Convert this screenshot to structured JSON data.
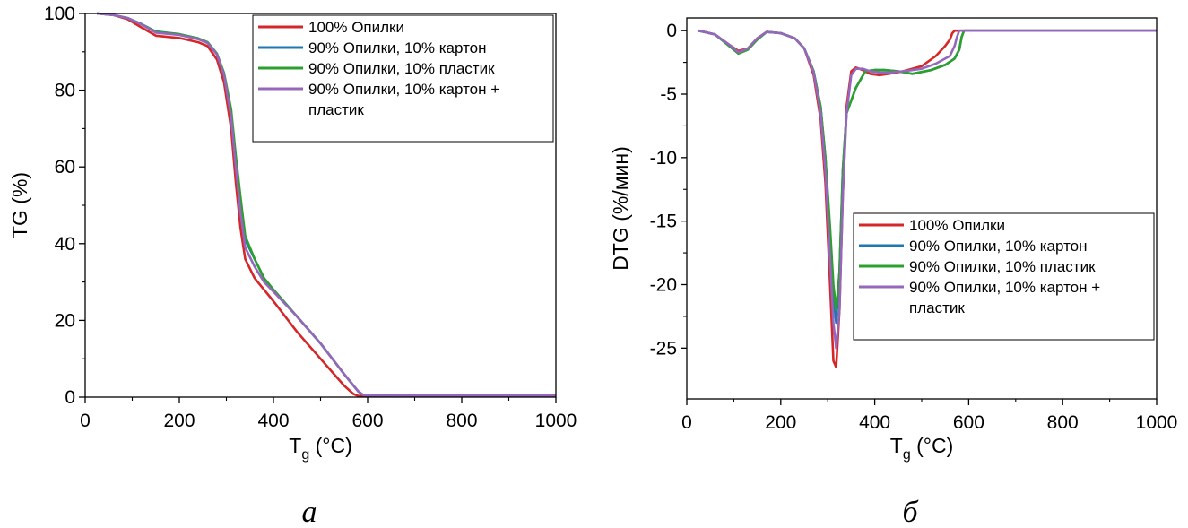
{
  "panels": [
    {
      "letter": "а",
      "chart_data": {
        "type": "line",
        "title": "",
        "xlabel_main": "T",
        "xlabel_sub": "g",
        "xlabel_unit": " (°C)",
        "ylabel": "TG (%)",
        "xlim": [
          0,
          1000
        ],
        "ylim": [
          0,
          100
        ],
        "xticks": [
          0,
          200,
          400,
          600,
          800,
          1000
        ],
        "yticks": [
          0,
          20,
          40,
          60,
          80,
          100
        ],
        "grid": false,
        "legend_position": "top-right",
        "series": [
          {
            "name": "100% Опилки",
            "color": "#d62728",
            "x": [
              25,
              60,
              90,
              120,
              150,
              200,
              240,
              260,
              280,
              295,
              310,
              320,
              330,
              340,
              360,
              400,
              450,
              500,
              550,
              570,
              580,
              600,
              700,
              800,
              1000
            ],
            "y": [
              100,
              99.6,
              98.5,
              96.3,
              94.2,
              93.6,
              92.5,
              91.5,
              88,
              82,
              70,
              56,
              44,
              36,
              31,
              25,
              17,
              10,
              3,
              0.8,
              0.3,
              0.3,
              0.3,
              0.3,
              0.3
            ]
          },
          {
            "name": "90% Опилки, 10% картон",
            "color": "#1f77b4",
            "x": [
              25,
              60,
              90,
              120,
              150,
              200,
              240,
              260,
              280,
              295,
              310,
              320,
              330,
              340,
              360,
              380,
              400,
              450,
              500,
              550,
              580,
              590,
              600,
              700,
              800,
              1000
            ],
            "y": [
              100,
              99.6,
              98.8,
              97.2,
              95.3,
              94.6,
              93.5,
              92.5,
              89.5,
              84,
              74,
              62,
              50,
              41,
              36,
              31,
              28,
              21,
              14,
              6,
              1.5,
              0.6,
              0.5,
              0.4,
              0.4,
              0.4
            ]
          },
          {
            "name": "90% Опилки, 10% пластик",
            "color": "#2ca02c",
            "x": [
              25,
              60,
              90,
              120,
              150,
              200,
              240,
              260,
              280,
              295,
              310,
              320,
              330,
              340,
              360,
              380,
              400,
              450,
              500,
              550,
              580,
              590,
              600,
              700,
              800,
              1000
            ],
            "y": [
              100,
              99.6,
              98.8,
              97.2,
              95.2,
              94.6,
              93.5,
              92.5,
              89.5,
              84.5,
              75,
              63,
              52,
              42,
              36,
              31,
              28,
              21,
              14,
              6,
              1.5,
              0.6,
              0.5,
              0.4,
              0.4,
              0.4
            ]
          },
          {
            "name": "90% Опилки, 10% картон + пластик",
            "color": "#9467bd",
            "x": [
              25,
              60,
              90,
              120,
              150,
              200,
              240,
              260,
              280,
              295,
              310,
              320,
              330,
              340,
              360,
              380,
              400,
              450,
              500,
              550,
              580,
              590,
              600,
              700,
              800,
              1000
            ],
            "y": [
              100,
              99.6,
              98.8,
              97.1,
              95,
              94.4,
              93.3,
              92.3,
              89.3,
              84,
              73,
              60,
              48,
              39,
              34,
              30,
              27.5,
              21,
              14,
              6,
              1.5,
              0.6,
              0.5,
              0.4,
              0.4,
              0.4
            ]
          }
        ]
      }
    },
    {
      "letter": "б",
      "chart_data": {
        "type": "line",
        "title": "",
        "xlabel_main": "T",
        "xlabel_sub": "g",
        "xlabel_unit": " (°C)",
        "ylabel": "DTG (%/мин)",
        "xlim": [
          0,
          1000
        ],
        "ylim": [
          -29,
          1
        ],
        "xticks": [
          0,
          200,
          400,
          600,
          800,
          1000
        ],
        "yticks": [
          -25,
          -20,
          -15,
          -10,
          -5,
          0
        ],
        "grid": false,
        "legend_position": "center-right",
        "series": [
          {
            "name": "100% Опилки",
            "color": "#d62728",
            "x": [
              25,
              60,
              90,
              110,
              130,
              150,
              170,
              200,
              230,
              250,
              270,
              285,
              295,
              305,
              312,
              318,
              325,
              332,
              340,
              350,
              360,
              375,
              390,
              410,
              430,
              460,
              500,
              530,
              550,
              560,
              565,
              570,
              580,
              600,
              700,
              800,
              1000
            ],
            "y": [
              0,
              -0.3,
              -1.1,
              -1.6,
              -1.4,
              -0.6,
              -0.1,
              -0.2,
              -0.6,
              -1.4,
              -3.5,
              -7,
              -12,
              -20,
              -26,
              -26.5,
              -22,
              -13,
              -6,
              -3.2,
              -2.9,
              -3.1,
              -3.4,
              -3.5,
              -3.4,
              -3.2,
              -2.8,
              -2,
              -1.2,
              -0.7,
              -0.2,
              0,
              0,
              0,
              0,
              0,
              0
            ]
          },
          {
            "name": "90% Опилки, 10% картон",
            "color": "#1f77b4",
            "x": [
              25,
              60,
              90,
              110,
              130,
              150,
              170,
              200,
              230,
              250,
              270,
              285,
              295,
              305,
              312,
              318,
              325,
              332,
              340,
              350,
              360,
              380,
              400,
              420,
              450,
              480,
              520,
              550,
              570,
              580,
              585,
              590,
              600,
              700,
              800,
              1000
            ],
            "y": [
              0,
              -0.3,
              -1.2,
              -1.8,
              -1.5,
              -0.7,
              -0.1,
              -0.2,
              -0.6,
              -1.4,
              -3.2,
              -6,
              -10,
              -16,
              -21,
              -23,
              -19,
              -11,
              -6.5,
              -5.5,
              -4.5,
              -3.2,
              -3.1,
              -3.1,
              -3.2,
              -3.4,
              -3.1,
              -2.7,
              -2.2,
              -1.5,
              -0.5,
              0,
              0,
              0,
              0,
              0
            ]
          },
          {
            "name": "90% Опилки, 10% пластик",
            "color": "#2ca02c",
            "x": [
              25,
              60,
              90,
              110,
              130,
              150,
              170,
              200,
              230,
              250,
              270,
              285,
              295,
              305,
              312,
              318,
              325,
              332,
              340,
              350,
              360,
              380,
              400,
              420,
              450,
              480,
              520,
              550,
              570,
              580,
              585,
              590,
              600,
              700,
              800,
              1000
            ],
            "y": [
              0,
              -0.3,
              -1.2,
              -1.8,
              -1.5,
              -0.7,
              -0.1,
              -0.2,
              -0.6,
              -1.4,
              -3.2,
              -6,
              -10,
              -15.5,
              -20,
              -22,
              -19,
              -11,
              -6.5,
              -5.5,
              -4.5,
              -3.2,
              -3.1,
              -3.1,
              -3.2,
              -3.4,
              -3.1,
              -2.7,
              -2.2,
              -1.5,
              -0.5,
              0,
              0,
              0,
              0,
              0
            ]
          },
          {
            "name": "90% Опилки, 10% картон + пластик",
            "color": "#9467bd",
            "x": [
              25,
              60,
              90,
              110,
              130,
              150,
              170,
              200,
              230,
              250,
              270,
              285,
              295,
              305,
              312,
              318,
              325,
              332,
              340,
              350,
              360,
              375,
              390,
              410,
              430,
              460,
              500,
              530,
              560,
              570,
              575,
              580,
              600,
              700,
              800,
              1000
            ],
            "y": [
              0,
              -0.3,
              -1.1,
              -1.7,
              -1.4,
              -0.6,
              -0.1,
              -0.2,
              -0.6,
              -1.4,
              -3.3,
              -6.5,
              -11,
              -18,
              -23,
              -25,
              -22,
              -13,
              -6.5,
              -3.5,
              -3,
              -3,
              -3.2,
              -3.3,
              -3.3,
              -3.2,
              -3,
              -2.6,
              -2,
              -1.2,
              -0.5,
              0,
              0,
              0,
              0,
              0
            ]
          }
        ]
      }
    }
  ]
}
